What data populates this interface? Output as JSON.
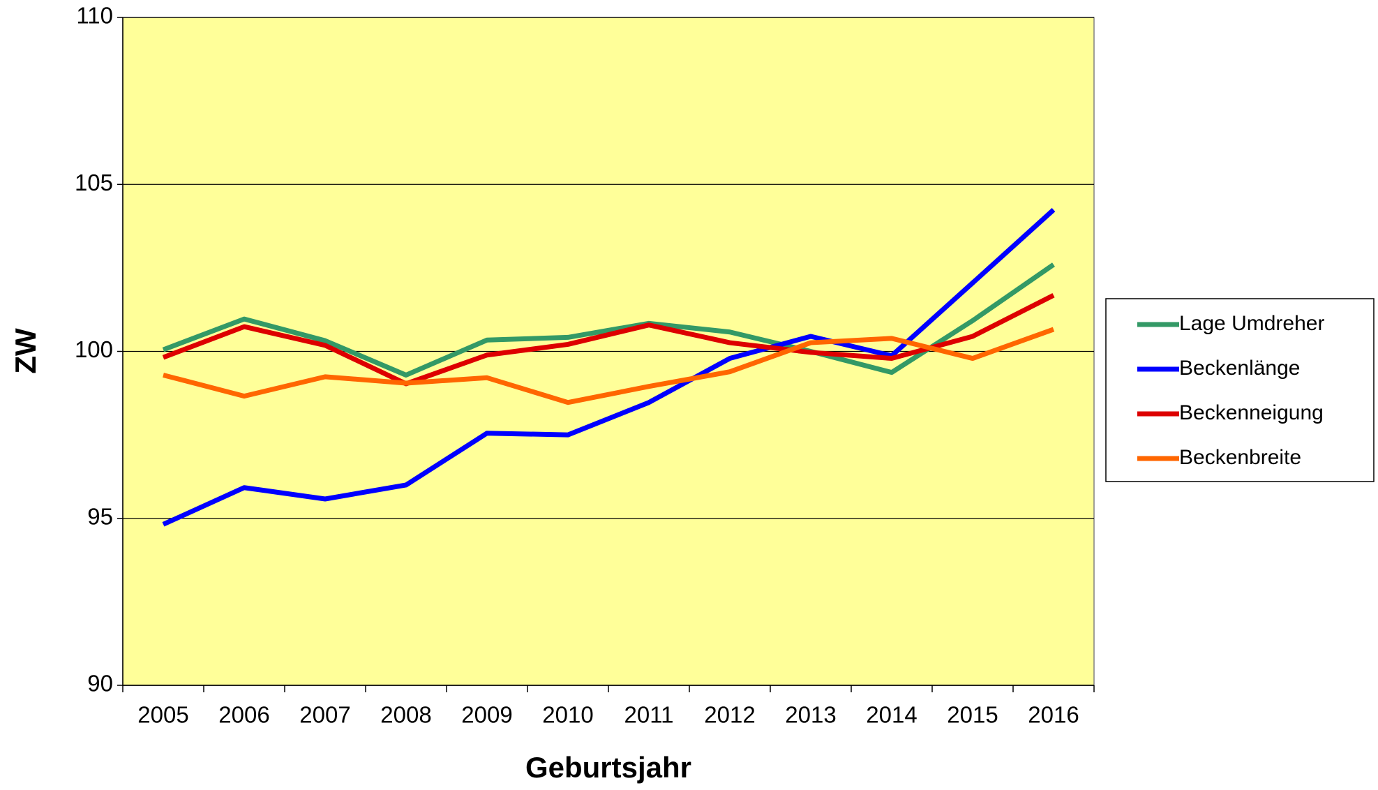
{
  "chart_data": {
    "type": "line",
    "x_label": "Geburtsjahr",
    "y_label": "ZW",
    "categories": [
      "2005",
      "2006",
      "2007",
      "2008",
      "2009",
      "2010",
      "2011",
      "2012",
      "2013",
      "2014",
      "2015",
      "2016"
    ],
    "series": [
      {
        "name": "Lage Umdreher",
        "color": "#339966",
        "values": [
          100.05,
          100.97,
          100.32,
          99.29,
          100.34,
          100.42,
          100.84,
          100.58,
          100.0,
          99.37,
          100.92,
          102.6
        ]
      },
      {
        "name": "Beckenlänge",
        "color": "#0000ff",
        "values": [
          94.82,
          95.92,
          95.58,
          96.0,
          97.55,
          97.5,
          98.47,
          99.79,
          100.45,
          99.87,
          102.05,
          104.24
        ]
      },
      {
        "name": "Beckenneigung",
        "color": "#dd0000",
        "values": [
          99.82,
          100.74,
          100.18,
          99.03,
          99.89,
          100.21,
          100.79,
          100.26,
          99.97,
          99.79,
          100.45,
          101.68
        ]
      },
      {
        "name": "Beckenbreite",
        "color": "#ff6600",
        "values": [
          99.29,
          98.66,
          99.24,
          99.05,
          99.21,
          98.47,
          98.95,
          99.39,
          100.26,
          100.39,
          99.79,
          100.66
        ]
      }
    ],
    "ylim": [
      90,
      110
    ],
    "yticks": [
      90,
      95,
      100,
      105,
      110
    ],
    "grid": true,
    "plot_background": "#ffff99",
    "legend": "right"
  }
}
